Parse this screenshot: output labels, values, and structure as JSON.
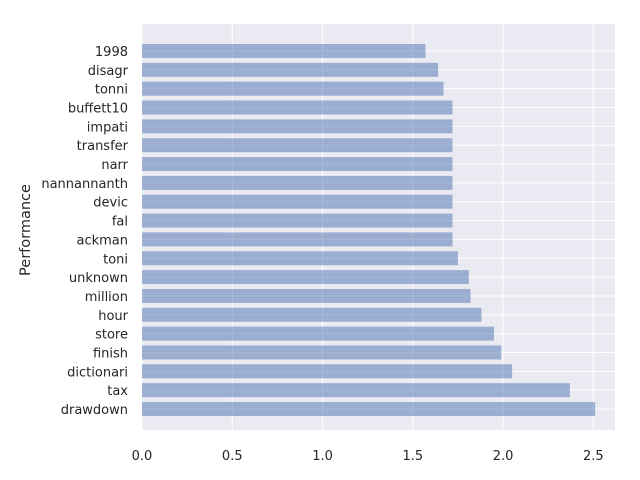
{
  "chart_data": {
    "type": "bar",
    "orientation": "horizontal",
    "title": "",
    "xlabel": "",
    "ylabel": "Performance",
    "xlim": [
      0,
      2.62
    ],
    "xticks": [
      0.0,
      0.5,
      1.0,
      1.5,
      2.0,
      2.5
    ],
    "xtick_labels": [
      "0.0",
      "0.5",
      "1.0",
      "1.5",
      "2.0",
      "2.5"
    ],
    "grid": true,
    "legend": "none",
    "bar_color": "#4c72b0",
    "bar_alpha": 0.5,
    "background_color": "#eaeaf2",
    "categories": [
      "1998",
      "disagr",
      "tonni",
      "buffett10",
      "impati",
      "transfer",
      "narr",
      "nannannanth",
      "devic",
      "fal",
      "ackman",
      "toni",
      "unknown",
      "million",
      "hour",
      "store",
      "finish",
      "dictionari",
      "tax",
      "drawdown"
    ],
    "values": [
      1.57,
      1.64,
      1.67,
      1.72,
      1.72,
      1.72,
      1.72,
      1.72,
      1.72,
      1.72,
      1.72,
      1.75,
      1.81,
      1.82,
      1.88,
      1.95,
      1.99,
      2.05,
      2.37,
      2.51
    ]
  }
}
